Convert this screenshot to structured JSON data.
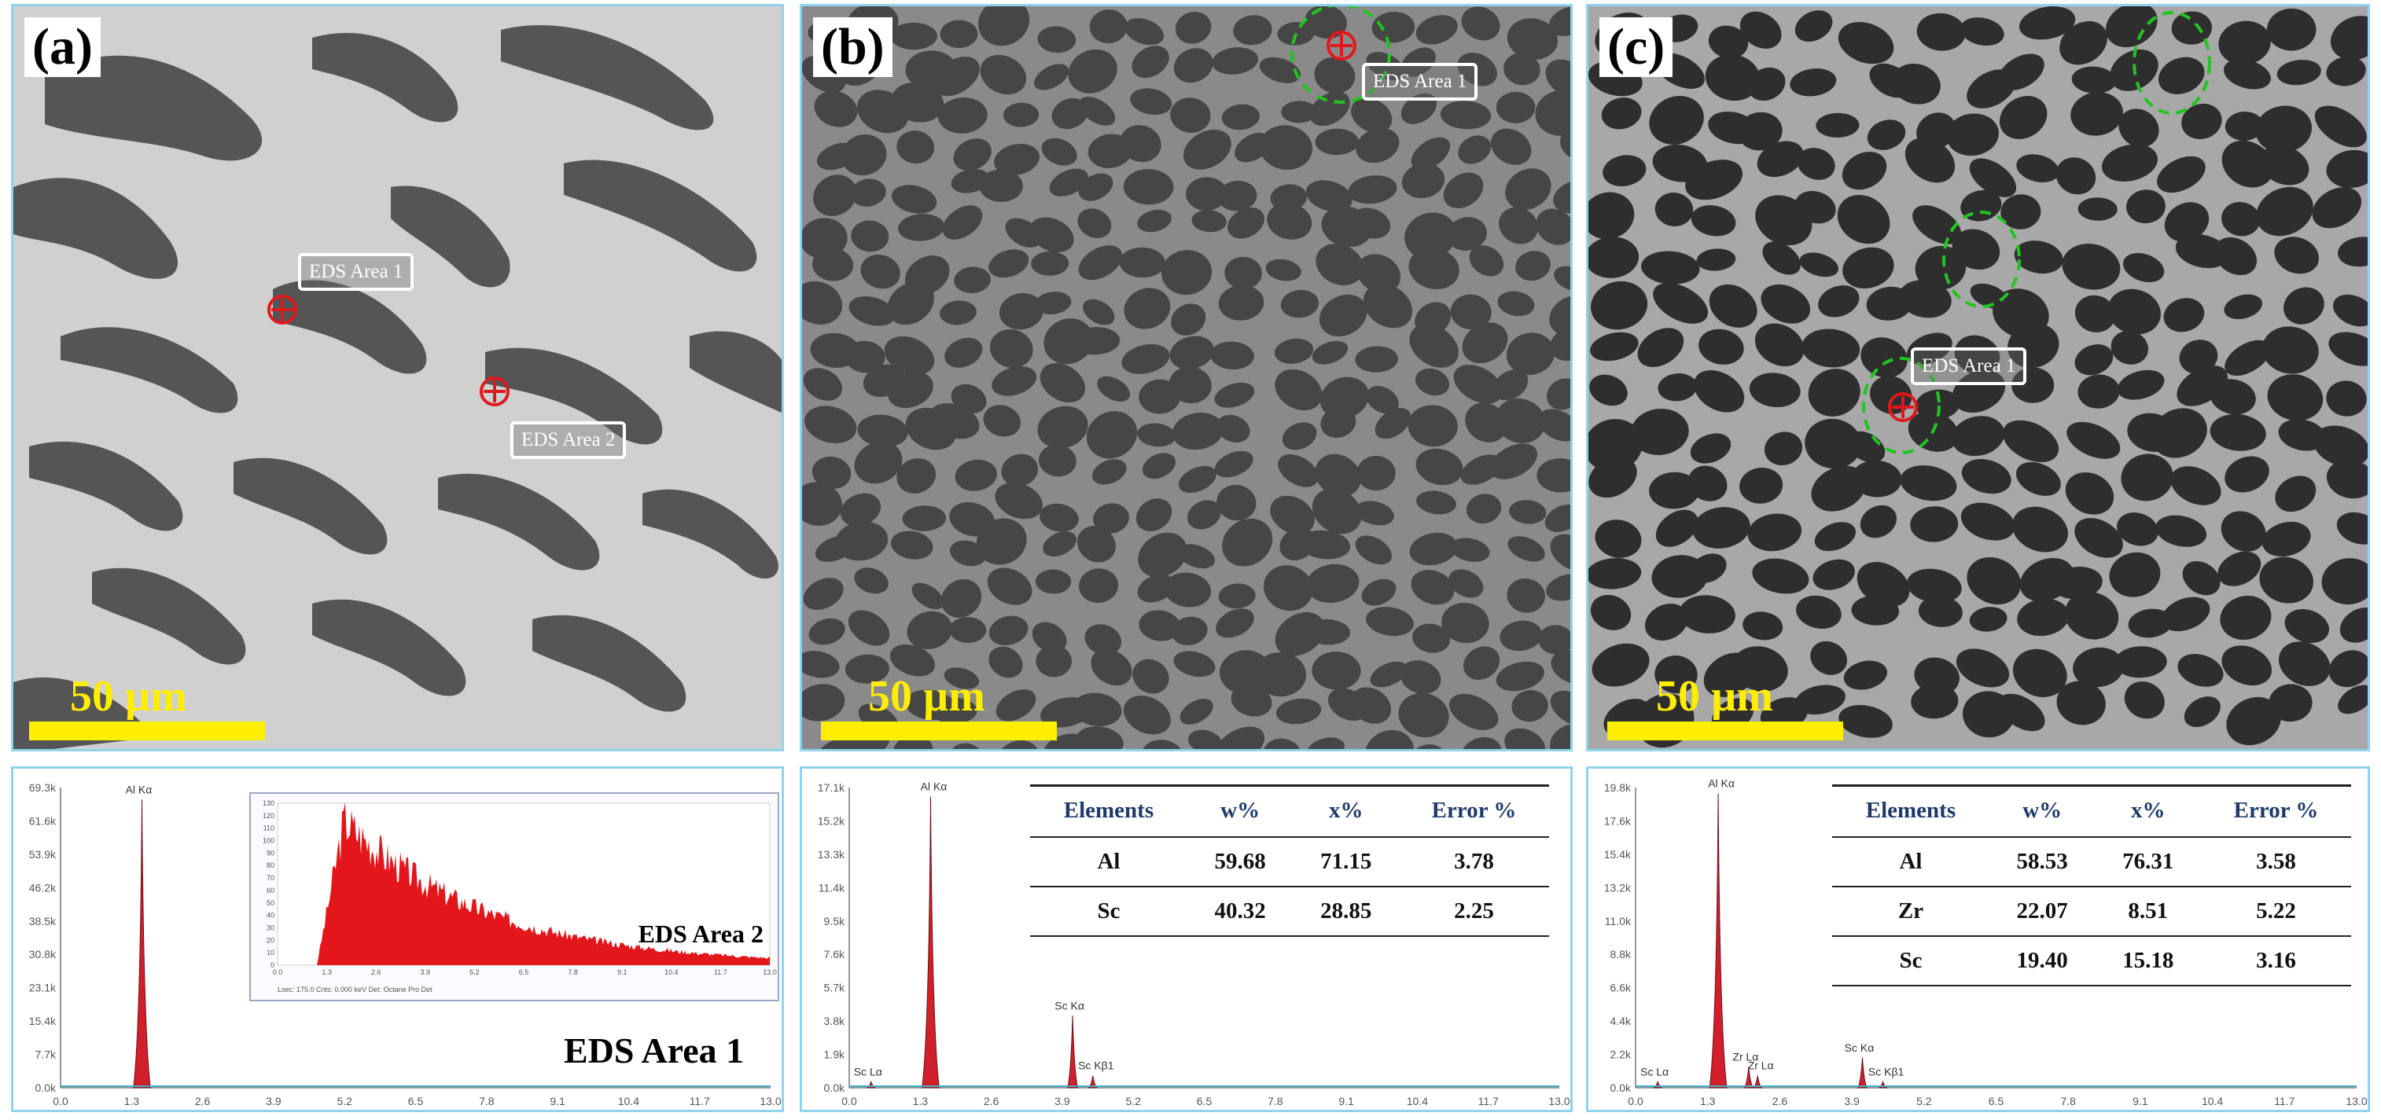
{
  "panels": [
    {
      "label": "(a)",
      "scale": "50 µm",
      "eds_labels": [
        "EDS Area 1",
        "EDS Area 2"
      ]
    },
    {
      "label": "(b)",
      "scale": "50 µm",
      "eds_labels": [
        "EDS Area 1"
      ]
    },
    {
      "label": "(c)",
      "scale": "50 µm",
      "eds_labels": [
        "EDS Area 1"
      ]
    }
  ],
  "spectra": [
    {
      "caption": "EDS Area 1",
      "inset_caption": "EDS Area 2",
      "y_ticks": [
        "0.0k",
        "7.7k",
        "15.4k",
        "23.1k",
        "30.8k",
        "38.5k",
        "46.2k",
        "53.9k",
        "61.6k",
        "69.3k"
      ],
      "x_ticks": [
        "0.0",
        "1.3",
        "2.6",
        "3.9",
        "5.2",
        "6.5",
        "7.8",
        "9.1",
        "10.4",
        "11.7",
        "13.0"
      ],
      "peaks": [
        {
          "label": "Al Kα",
          "x": 1.49,
          "y": 0.96
        }
      ],
      "inset_y_ticks": [
        "0",
        "10",
        "20",
        "30",
        "40",
        "50",
        "60",
        "70",
        "80",
        "90",
        "100",
        "110",
        "120",
        "130"
      ],
      "inset_x_ticks": [
        "0.0",
        "1.3",
        "2.6",
        "3.9",
        "5.2",
        "6.5",
        "7.8",
        "9.1",
        "10.4",
        "11.7",
        "13.0"
      ],
      "inset_footer": "Lsec: 175.0   Cnts: 0.000 keV   Det: Octane Pro Det"
    },
    {
      "y_ticks": [
        "0.0k",
        "1.9k",
        "3.8k",
        "5.7k",
        "7.6k",
        "9.5k",
        "11.4k",
        "13.3k",
        "15.2k",
        "17.1k"
      ],
      "x_ticks": [
        "0.0",
        "1.3",
        "2.6",
        "3.9",
        "5.2",
        "6.5",
        "7.8",
        "9.1",
        "10.4",
        "11.7",
        "13.0"
      ],
      "peaks": [
        {
          "label": "Sc Lα",
          "x": 0.4,
          "y": 0.02
        },
        {
          "label": "Al Kα",
          "x": 1.49,
          "y": 0.97
        },
        {
          "label": "Sc Kα",
          "x": 4.09,
          "y": 0.24
        },
        {
          "label": "Sc Kβ1",
          "x": 4.46,
          "y": 0.04
        }
      ],
      "table": {
        "headers": [
          "Elements",
          "w%",
          "x%",
          "Error %"
        ],
        "rows": [
          [
            "Al",
            "59.68",
            "71.15",
            "3.78"
          ],
          [
            "Sc",
            "40.32",
            "28.85",
            "2.25"
          ]
        ]
      }
    },
    {
      "y_ticks": [
        "0.0k",
        "2.2k",
        "4.4k",
        "6.6k",
        "8.8k",
        "11.0k",
        "13.2k",
        "15.4k",
        "17.6k",
        "19.8k"
      ],
      "x_ticks": [
        "0.0",
        "1.3",
        "2.6",
        "3.9",
        "5.2",
        "6.5",
        "7.8",
        "9.1",
        "10.4",
        "11.7",
        "13.0"
      ],
      "peaks": [
        {
          "label": "Sc Lα",
          "x": 0.4,
          "y": 0.02
        },
        {
          "label": "Al Kα",
          "x": 1.49,
          "y": 0.98
        },
        {
          "label": "Zr Lα",
          "x": 2.04,
          "y": 0.07
        },
        {
          "label": "Zr Lα",
          "x": 2.2,
          "y": 0.04
        },
        {
          "label": "Sc Kα",
          "x": 4.09,
          "y": 0.1
        },
        {
          "label": "Sc Kβ1",
          "x": 4.46,
          "y": 0.02
        }
      ],
      "table": {
        "headers": [
          "Elements",
          "w%",
          "x%",
          "Error %"
        ],
        "rows": [
          [
            "Al",
            "58.53",
            "76.31",
            "3.58"
          ],
          [
            "Zr",
            "22.07",
            "8.51",
            "5.22"
          ],
          [
            "Sc",
            "19.40",
            "15.18",
            "3.16"
          ]
        ]
      }
    }
  ],
  "colors": {
    "scalebar": "#ffee00",
    "peak_fill": "#d11f2b",
    "marker": "#e0181e",
    "dashed_circle": "#22c422",
    "panel_border": "#8fd3ee"
  }
}
